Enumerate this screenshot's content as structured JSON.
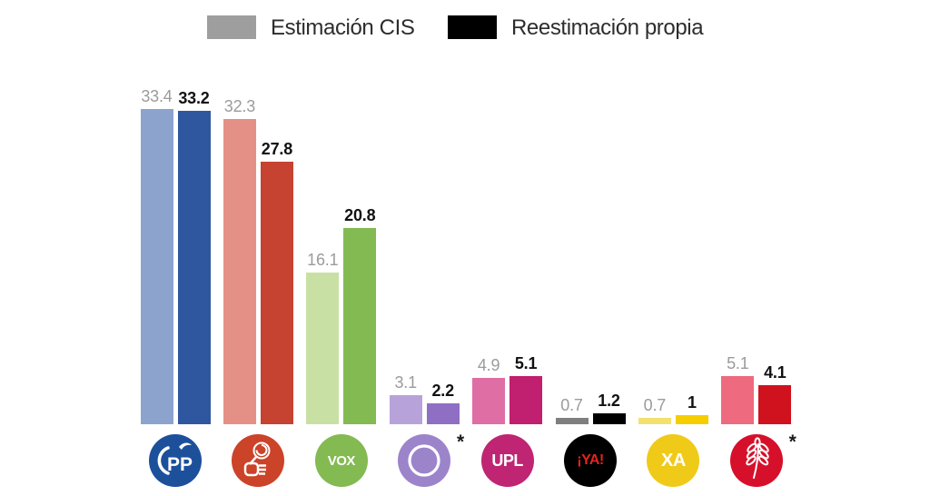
{
  "legend": {
    "cis_label": "Estimación CIS",
    "propia_label": "Reestimación propia",
    "cis_color": "#9e9e9e",
    "propia_color": "#000000"
  },
  "chart_data": {
    "type": "bar",
    "title": "",
    "categories": [
      "pp-gaviota-logo",
      "fist-and-rose-logo",
      "vox-logo",
      "purple-ring-logo",
      "upl-logo",
      "ya-logo",
      "xa-logo",
      "wheat-ear-logo"
    ],
    "series": [
      {
        "name": "Estimación CIS",
        "values": [
          33.4,
          32.3,
          16.1,
          3.1,
          4.9,
          0.7,
          0.7,
          5.1
        ]
      },
      {
        "name": "Reestimación propia",
        "values": [
          33.2,
          27.8,
          20.8,
          2.2,
          5.1,
          1.2,
          1.0,
          4.1
        ]
      }
    ],
    "value_labels": true,
    "value_label_colors": {
      "cis": "#9b9b9b",
      "propia": "#111111"
    },
    "ylim": [
      0,
      35
    ],
    "grid": false,
    "axes_visible": false,
    "legend_position": "top"
  },
  "parties": [
    {
      "id": "pp",
      "cis": 33.4,
      "propia": 33.2,
      "cis_label": "33.4",
      "propia_label": "33.2",
      "cis_color": "#8ca3cd",
      "propia_color": "#2e579f",
      "asterisk": false,
      "logo": {
        "icon": "pp-gaviota-logo",
        "kind": "pp",
        "text": "PP",
        "circle": "#1d509b",
        "fg": "#ffffff"
      }
    },
    {
      "id": "psoe-rose",
      "cis": 32.3,
      "propia": 27.8,
      "cis_label": "32.3",
      "propia_label": "27.8",
      "cis_color": "#e59086",
      "propia_color": "#c54330",
      "asterisk": false,
      "logo": {
        "icon": "fist-and-rose-logo",
        "kind": "rose",
        "text": "",
        "circle": "#cb4328",
        "fg": "#ffffff"
      }
    },
    {
      "id": "vox",
      "cis": 16.1,
      "propia": 20.8,
      "cis_label": "16.1",
      "propia_label": "20.8",
      "cis_color": "#c9e0a5",
      "propia_color": "#83ba52",
      "asterisk": false,
      "logo": {
        "icon": "vox-logo",
        "kind": "text",
        "text": "VOX",
        "circle": "#83ba52",
        "fg": "#ffffff",
        "size": 15
      }
    },
    {
      "id": "purple-ring",
      "cis": 3.1,
      "propia": 2.2,
      "cis_label": "3.1",
      "propia_label": "2.2",
      "cis_color": "#b7a3da",
      "propia_color": "#8f6fc4",
      "asterisk": true,
      "logo": {
        "icon": "purple-ring-logo",
        "kind": "ring",
        "text": "",
        "circle": "#9c84cb",
        "fg": "#ffffff"
      }
    },
    {
      "id": "upl",
      "cis": 4.9,
      "propia": 5.1,
      "cis_label": "4.9",
      "propia_label": "5.1",
      "cis_color": "#de6ea4",
      "propia_color": "#c11f70",
      "asterisk": false,
      "logo": {
        "icon": "upl-logo",
        "kind": "text",
        "text": "UPL",
        "circle": "#bf2572",
        "fg": "#ffffff",
        "size": 18
      }
    },
    {
      "id": "soria-ya",
      "cis": 0.7,
      "propia": 1.2,
      "cis_label": "0.7",
      "propia_label": "1.2",
      "cis_color": "#7f7f7f",
      "propia_color": "#000000",
      "asterisk": false,
      "logo": {
        "icon": "ya-logo",
        "kind": "text",
        "text": "¡YA!",
        "circle": "#000000",
        "fg": "#e4241e",
        "size": 16
      }
    },
    {
      "id": "xa",
      "cis": 0.7,
      "propia": 1.0,
      "cis_label": "0.7",
      "propia_label": "1",
      "cis_color": "#f4e06e",
      "propia_color": "#f6ce00",
      "asterisk": false,
      "logo": {
        "icon": "xa-logo",
        "kind": "text",
        "text": "XA",
        "circle": "#f0ca18",
        "fg": "#ffffff",
        "size": 20
      }
    },
    {
      "id": "wheat",
      "cis": 5.1,
      "propia": 4.1,
      "cis_label": "5.1",
      "propia_label": "4.1",
      "cis_color": "#ee6a7e",
      "propia_color": "#d0121f",
      "asterisk": true,
      "logo": {
        "icon": "wheat-ear-logo",
        "kind": "wheat",
        "text": "",
        "circle": "#d6102b",
        "fg": "#ffffff"
      }
    }
  ]
}
